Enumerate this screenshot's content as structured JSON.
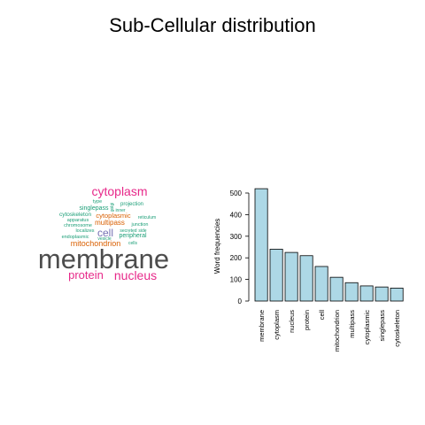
{
  "title": "Sub-Cellular distribution",
  "colors": {
    "bar_fill": "#add8e6",
    "bar_stroke": "#000000",
    "cloud_grey": "#4d4d4d",
    "cloud_magenta": "#e7298a",
    "cloud_orange": "#d95f02",
    "cloud_green": "#1b9e77",
    "cloud_purple": "#7570b3"
  },
  "word_cloud": {
    "words": [
      {
        "text": "membrane",
        "color": "#4d4d4d"
      },
      {
        "text": "cytoplasm",
        "color": "#e7298a"
      },
      {
        "text": "nucleus",
        "color": "#e7298a"
      },
      {
        "text": "protein",
        "color": "#e7298a"
      },
      {
        "text": "cell",
        "color": "#7570b3"
      },
      {
        "text": "mitochondrion",
        "color": "#d95f02"
      },
      {
        "text": "multipass",
        "color": "#d95f02"
      },
      {
        "text": "cytoplasmic",
        "color": "#d95f02"
      },
      {
        "text": "singlepass",
        "color": "#1b9e77"
      },
      {
        "text": "cytoskeleton",
        "color": "#1b9e77"
      },
      {
        "text": "peripheral",
        "color": "#1b9e77"
      },
      {
        "text": "projection",
        "color": "#1b9e77"
      },
      {
        "text": "apparatus",
        "color": "#1b9e77"
      },
      {
        "text": "chromosome",
        "color": "#1b9e77"
      },
      {
        "text": "localizes",
        "color": "#1b9e77"
      },
      {
        "text": "endoplasmic",
        "color": "#1b9e77"
      },
      {
        "text": "vesicle",
        "color": "#1b9e77"
      },
      {
        "text": "junction",
        "color": "#1b9e77"
      },
      {
        "text": "reticulum",
        "color": "#1b9e77"
      },
      {
        "text": "secreted",
        "color": "#1b9e77"
      },
      {
        "text": "side",
        "color": "#1b9e77"
      },
      {
        "text": "cells",
        "color": "#1b9e77"
      },
      {
        "text": "type",
        "color": "#1b9e77"
      },
      {
        "text": "inner",
        "color": "#1b9e77"
      },
      {
        "text": "golgi",
        "color": "#1b9e77"
      }
    ]
  },
  "chart_data": {
    "type": "bar",
    "title": "",
    "xlabel": "",
    "ylabel": "Word frequencies",
    "ylim": [
      0,
      500
    ],
    "yticks": [
      0,
      100,
      200,
      300,
      400,
      500
    ],
    "categories": [
      "membrane",
      "cytoplasm",
      "nucleus",
      "protein",
      "cell",
      "mitochondrion",
      "multipass",
      "cytoplasmic",
      "singlepass",
      "cytoskeleton"
    ],
    "values": [
      520,
      240,
      225,
      210,
      160,
      110,
      85,
      70,
      65,
      60
    ],
    "grid": false,
    "legend": "none"
  }
}
